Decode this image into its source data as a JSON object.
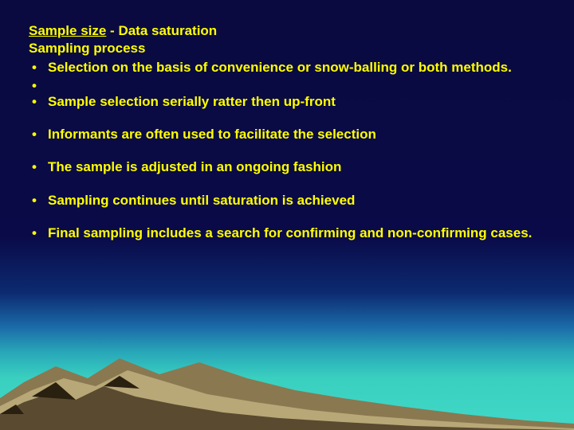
{
  "slide": {
    "background_gradient": [
      "#0a0a40",
      "#0a0a48",
      "#0c2a70",
      "#1a6aa8",
      "#28a8b8",
      "#3ad0c0",
      "#40d8c8"
    ],
    "text_color": "#ffff00",
    "font_family": "Arial",
    "font_size_pt": 13,
    "font_weight": "bold",
    "heading1_prefix": "Sample size",
    "heading1_sep": " - ",
    "heading1_rest": "Data saturation",
    "heading2": "Sampling process",
    "bullets": [
      {
        "text": "Selection on the basis of convenience or snow-balling or both methods.",
        "empty": false,
        "spaced": false
      },
      {
        "text": "",
        "empty": true,
        "spaced": false
      },
      {
        "text": "Sample selection serially ratter then up-front",
        "empty": false,
        "spaced": false
      },
      {
        "text": "Informants are often used to facilitate the selection",
        "empty": false,
        "spaced": true
      },
      {
        "text": "The sample is adjusted in an ongoing fashion",
        "empty": false,
        "spaced": true
      },
      {
        "text": "Sampling continues until saturation is achieved",
        "empty": false,
        "spaced": true
      },
      {
        "text": "Final sampling includes a search for confirming and non-confirming cases.",
        "empty": false,
        "spaced": true
      }
    ]
  },
  "mountains": {
    "fill_light": "#b8a878",
    "fill_mid": "#8a7850",
    "fill_dark": "#5a4a30",
    "fill_shadow": "#2a2010"
  }
}
